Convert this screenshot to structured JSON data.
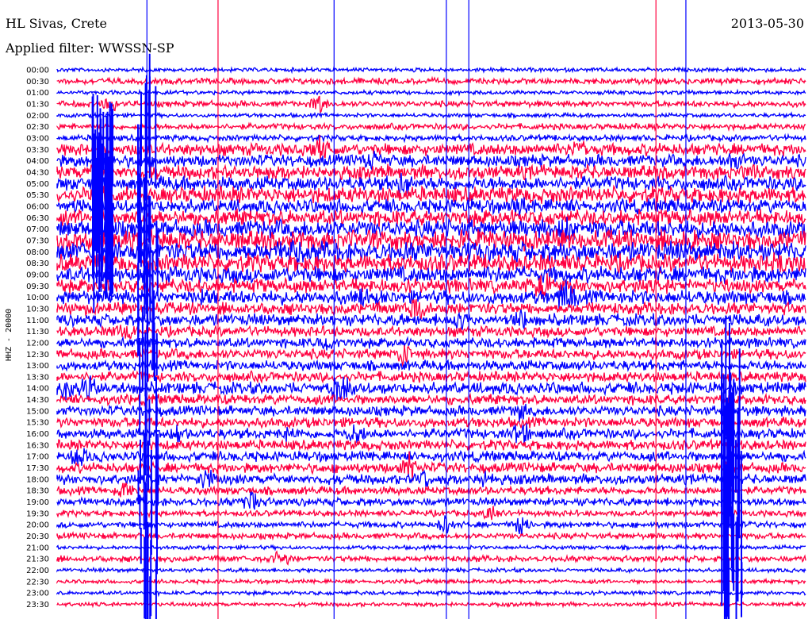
{
  "header": {
    "station": "HL Sivas, Crete",
    "date": "2013-05-30",
    "filter": "Applied filter: WWSSN-SP"
  },
  "chart_data": {
    "type": "line",
    "title": "HL Sivas, Crete",
    "date": "2013-05-30",
    "filter": "WWSSN-SP",
    "ylabel": "HHZ - 20000",
    "row_times": [
      "00:00",
      "00:30",
      "01:00",
      "01:30",
      "02:00",
      "02:30",
      "03:00",
      "03:30",
      "04:00",
      "04:30",
      "05:00",
      "05:30",
      "06:00",
      "06:30",
      "07:00",
      "07:30",
      "08:00",
      "08:30",
      "09:00",
      "09:30",
      "10:00",
      "10:30",
      "11:00",
      "11:30",
      "12:00",
      "12:30",
      "13:00",
      "13:30",
      "14:00",
      "14:30",
      "15:00",
      "15:30",
      "16:00",
      "16:30",
      "17:00",
      "17:30",
      "18:00",
      "18:30",
      "19:00",
      "19:30",
      "20:00",
      "20:30",
      "21:00",
      "21:30",
      "22:00",
      "22:30",
      "23:00",
      "23:30"
    ],
    "colors": [
      "#0000ff",
      "#ff0040"
    ],
    "row_amplitude": [
      2,
      3,
      2,
      3,
      2,
      3,
      3,
      6,
      6,
      7,
      7,
      8,
      7,
      8,
      9,
      10,
      10,
      9,
      8,
      7,
      7,
      6,
      6,
      5,
      5,
      5,
      5,
      5,
      6,
      5,
      5,
      5,
      5,
      5,
      5,
      5,
      5,
      4,
      4,
      3,
      3,
      3,
      2,
      3,
      2,
      2,
      2,
      2
    ],
    "bursts": [
      {
        "row": 3,
        "t": 0.35
      },
      {
        "row": 3,
        "t": 0.07
      },
      {
        "row": 7,
        "t": 0.35
      },
      {
        "row": 7,
        "t": 0.7
      },
      {
        "row": 8,
        "t": 0.42
      },
      {
        "row": 8,
        "t": 0.91
      },
      {
        "row": 9,
        "t": 0.93
      },
      {
        "row": 10,
        "t": 0.46
      },
      {
        "row": 12,
        "t": 0.62
      },
      {
        "row": 14,
        "t": 0.68
      },
      {
        "row": 15,
        "t": 0.85
      },
      {
        "row": 16,
        "t": 0.32
      },
      {
        "row": 16,
        "t": 0.56
      },
      {
        "row": 17,
        "t": 0.97
      },
      {
        "row": 19,
        "t": 0.65
      },
      {
        "row": 20,
        "t": 0.2
      },
      {
        "row": 20,
        "t": 0.41
      },
      {
        "row": 20,
        "t": 0.68
      },
      {
        "row": 21,
        "t": 0.48
      },
      {
        "row": 22,
        "t": 0.54
      },
      {
        "row": 22,
        "t": 0.62
      },
      {
        "row": 23,
        "t": 0.09
      },
      {
        "row": 24,
        "t": 0.36
      },
      {
        "row": 25,
        "t": 0.46
      },
      {
        "row": 28,
        "t": 0.01
      },
      {
        "row": 28,
        "t": 0.04
      },
      {
        "row": 28,
        "t": 0.38
      },
      {
        "row": 30,
        "t": 0.62
      },
      {
        "row": 32,
        "t": 0.16
      },
      {
        "row": 32,
        "t": 0.31
      },
      {
        "row": 32,
        "t": 0.4
      },
      {
        "row": 32,
        "t": 0.62
      },
      {
        "row": 34,
        "t": 0.03
      },
      {
        "row": 35,
        "t": 0.47
      },
      {
        "row": 36,
        "t": 0.2
      },
      {
        "row": 36,
        "t": 0.49
      },
      {
        "row": 36,
        "t": 0.57
      },
      {
        "row": 37,
        "t": 0.09
      },
      {
        "row": 38,
        "t": 0.26
      },
      {
        "row": 39,
        "t": 0.58
      },
      {
        "row": 40,
        "t": 0.52
      },
      {
        "row": 40,
        "t": 0.62
      },
      {
        "row": 43,
        "t": 0.3
      }
    ],
    "large_events": [
      {
        "t": 0.06,
        "row_start": 6,
        "row_end": 16,
        "color": "#0000ff"
      },
      {
        "t": 0.12,
        "row_start": 4,
        "row_end": 47,
        "color": "#0000ff"
      },
      {
        "t": 0.9,
        "row_start": 26,
        "row_end": 47,
        "color": "#0000ff"
      }
    ],
    "spikes": [
      {
        "t": 0.12,
        "color": "#0000ff"
      },
      {
        "t": 0.215,
        "color": "#ff0040"
      },
      {
        "t": 0.37,
        "color": "#0000ff"
      },
      {
        "t": 0.52,
        "color": "#0000ff"
      },
      {
        "t": 0.55,
        "color": "#0000ff"
      },
      {
        "t": 0.8,
        "color": "#ff0040"
      },
      {
        "t": 0.84,
        "color": "#0000ff"
      }
    ]
  }
}
